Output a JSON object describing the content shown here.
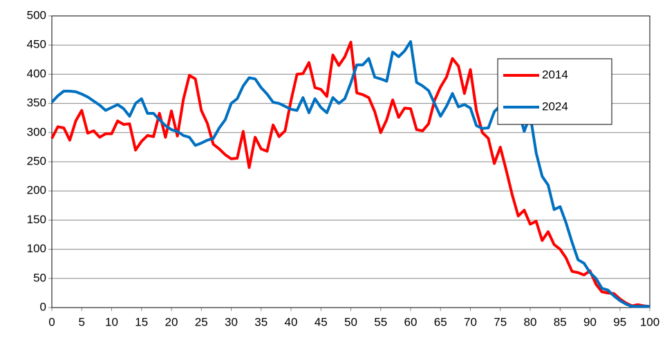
{
  "chart_data": {
    "type": "line",
    "x": [
      0,
      1,
      2,
      3,
      4,
      5,
      6,
      7,
      8,
      9,
      10,
      11,
      12,
      13,
      14,
      15,
      16,
      17,
      18,
      19,
      20,
      21,
      22,
      23,
      24,
      25,
      26,
      27,
      28,
      29,
      30,
      31,
      32,
      33,
      34,
      35,
      36,
      37,
      38,
      39,
      40,
      41,
      42,
      43,
      44,
      45,
      46,
      47,
      48,
      49,
      50,
      51,
      52,
      53,
      54,
      55,
      56,
      57,
      58,
      59,
      60,
      61,
      62,
      63,
      64,
      65,
      66,
      67,
      68,
      69,
      70,
      71,
      72,
      73,
      74,
      75,
      76,
      77,
      78,
      79,
      80,
      81,
      82,
      83,
      84,
      85,
      86,
      87,
      88,
      89,
      90,
      91,
      92,
      93,
      94,
      95,
      96,
      97,
      98,
      99,
      100
    ],
    "series": [
      {
        "name": "2014",
        "color": "#ff0000",
        "values": [
          290,
          310,
          308,
          287,
          320,
          338,
          299,
          303,
          292,
          298,
          298,
          320,
          314,
          315,
          270,
          285,
          295,
          293,
          333,
          292,
          337,
          294,
          357,
          398,
          392,
          338,
          316,
          280,
          272,
          262,
          255,
          256,
          302,
          240,
          292,
          272,
          268,
          313,
          293,
          303,
          355,
          400,
          401,
          420,
          377,
          374,
          362,
          433,
          415,
          430,
          455,
          368,
          365,
          360,
          336,
          300,
          322,
          356,
          326,
          342,
          341,
          305,
          303,
          315,
          355,
          378,
          395,
          427,
          414,
          367,
          408,
          338,
          300,
          290,
          247,
          275,
          235,
          193,
          157,
          167,
          143,
          148,
          115,
          130,
          108,
          100,
          85,
          62,
          60,
          56,
          63,
          40,
          27,
          25,
          24,
          15,
          8,
          3,
          5,
          3,
          2
        ]
      },
      {
        "name": "2024",
        "color": "#0070c0",
        "values": [
          352,
          363,
          371,
          371,
          370,
          366,
          361,
          354,
          347,
          338,
          343,
          348,
          341,
          328,
          350,
          358,
          333,
          333,
          322,
          312,
          305,
          302,
          295,
          292,
          278,
          282,
          287,
          290,
          308,
          322,
          350,
          358,
          380,
          394,
          392,
          377,
          366,
          352,
          350,
          345,
          340,
          338,
          360,
          334,
          358,
          343,
          334,
          360,
          350,
          358,
          385,
          416,
          416,
          427,
          395,
          392,
          388,
          438,
          430,
          440,
          456,
          386,
          380,
          372,
          350,
          328,
          345,
          367,
          344,
          348,
          342,
          312,
          307,
          308,
          336,
          346,
          352,
          345,
          340,
          302,
          330,
          265,
          225,
          210,
          168,
          173,
          145,
          112,
          82,
          76,
          60,
          50,
          33,
          30,
          20,
          12,
          6,
          2,
          2,
          2,
          2
        ]
      }
    ],
    "xlim": [
      0,
      100
    ],
    "xticks": [
      0,
      5,
      10,
      15,
      20,
      25,
      30,
      35,
      40,
      45,
      50,
      55,
      60,
      65,
      70,
      75,
      80,
      85,
      90,
      95,
      100
    ],
    "ylim": [
      0,
      500
    ],
    "yticks": [
      0,
      50,
      100,
      150,
      200,
      250,
      300,
      350,
      400,
      450,
      500
    ],
    "grid": true,
    "legend": "upper right"
  }
}
